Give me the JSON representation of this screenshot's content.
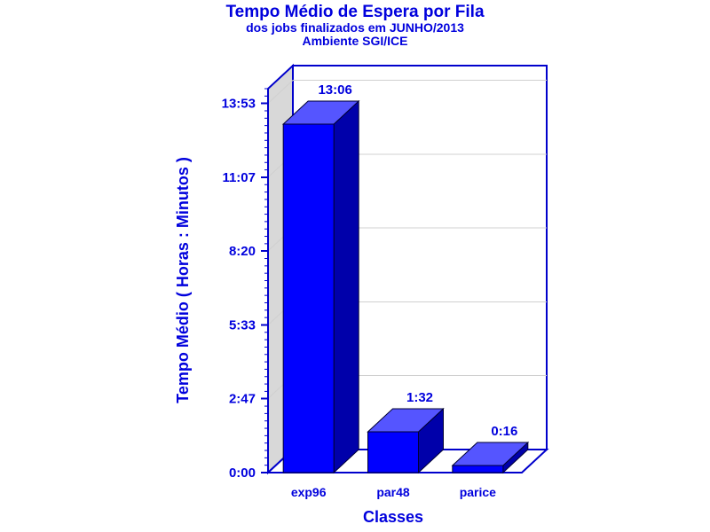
{
  "chart_data": {
    "type": "bar",
    "title": "Tempo Médio de Espera por Fila",
    "subtitle_lines": [
      "dos jobs finalizados em JUNHO/2013",
      "Ambiente SGI/ICE"
    ],
    "xlabel": "Classes",
    "ylabel": "Tempo Médio ( Horas : Minutos )",
    "categories": [
      "exp96",
      "par48",
      "parice"
    ],
    "values_minutes": [
      786,
      92,
      16
    ],
    "value_labels": [
      "13:06",
      "1:32",
      "0:16"
    ],
    "ylim_minutes": [
      0,
      866
    ],
    "yticks_minutes": [
      0,
      167,
      333,
      500,
      666,
      833
    ],
    "ytick_labels": [
      "0:00",
      "2:47",
      "5:33",
      "8:20",
      "11:07",
      "13:53"
    ],
    "grid": true,
    "colors": {
      "bar_front": "#0000ff",
      "bar_top": "#5555ff",
      "bar_side": "#0000aa",
      "text": "#0000dd",
      "axis": "#0000cc",
      "back_wall": "#d8d8d8",
      "grid": "#d0d0d0"
    }
  }
}
